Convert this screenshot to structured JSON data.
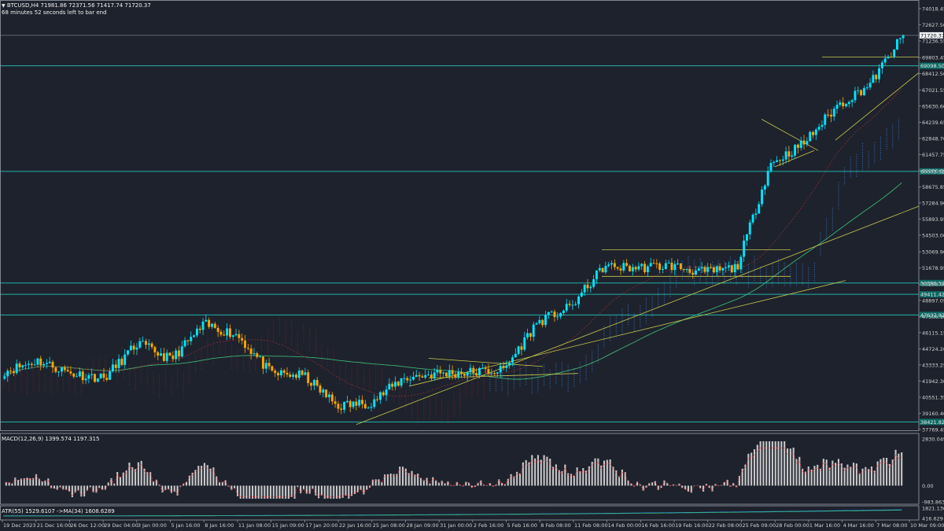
{
  "header": {
    "symbol_line": "BTCUSD,H4  71981.86 72371.56 71417.74 71720.37",
    "timer_text": "68 minutes 52 seconds left to bar end"
  },
  "indicators": {
    "macd_label": "MACD(12,26,9) 1399.574 1197.315",
    "atr_label": "ATR(55) 1529.6107  ->MA(34) 1608.6289"
  },
  "price_axis": {
    "ticks": [
      "74018.45",
      "72627.50",
      "71236.55",
      "69803.45",
      "68412.50",
      "67021.55",
      "65630.60",
      "64239.65",
      "62848.70",
      "61457.75",
      "60066.80",
      "58675.85",
      "57284.90",
      "55893.95",
      "54503.00",
      "53069.90",
      "51678.95",
      "50288.00",
      "48897.05",
      "47506.10",
      "46115.15",
      "44724.20",
      "43333.25",
      "41942.30",
      "40551.35",
      "39160.40",
      "37769.45"
    ],
    "current_price": "71720.37",
    "levels": [
      "69098.50",
      "60003.52",
      "50386.52",
      "49411.42",
      "47637.82",
      "38421.82"
    ]
  },
  "macd_axis": {
    "ticks": [
      "2830.049",
      "0.00",
      "-983.863"
    ]
  },
  "atr_axis": {
    "ticks": [
      "1821.1306",
      "416.629"
    ]
  },
  "time_axis": {
    "labels": [
      "19 Dec 2023",
      "21 Dec 16:00",
      "26 Dec 12:00",
      "29 Dec 04:00",
      "3 Jan 00:00",
      "5 Jan 16:00",
      "8 Jan 16:00",
      "11 Jan 08:00",
      "15 Jan 09:00",
      "17 Jan 20:00",
      "22 Jan 16:00",
      "25 Jan 08:00",
      "28 Jan 09:00",
      "31 Jan 00:00",
      "2 Feb 16:00",
      "5 Feb 16:00",
      "8 Feb 08:00",
      "11 Feb 08:00",
      "14 Feb 00:00",
      "16 Feb 16:00",
      "19 Feb 16:00",
      "22 Feb 08:00",
      "25 Feb 09:00",
      "28 Feb 00:00",
      "1 Mar 16:00",
      "4 Mar 16:00",
      "7 Mar 08:00",
      "10 Mar 09:00"
    ]
  },
  "colors": {
    "background": "#1e222d",
    "bull": "#00e5ff",
    "bear": "#ffa500",
    "level_line": "#20b2aa",
    "trend_line": "#c9c94a",
    "cloud_bull": "#3a7fd0",
    "cloud_bear": "#8b1a2a",
    "ma_line": "#3cb371",
    "histogram": "#c8c8c8",
    "signal": "#ff3030"
  },
  "chart_data": {
    "type": "candlestick",
    "symbol": "BTCUSD",
    "timeframe": "H4",
    "ohlc_last": {
      "open": 71981.86,
      "high": 72371.56,
      "low": 71417.74,
      "close": 71720.37
    },
    "ylim": [
      37769.45,
      74018.45
    ],
    "horizontal_levels": [
      69098.5,
      60003.52,
      50386.52,
      49411.42,
      47637.82,
      38421.82
    ],
    "close_path": [
      {
        "x": "19 Dec 2023",
        "y": 42800
      },
      {
        "x": "21 Dec 16:00",
        "y": 43700
      },
      {
        "x": "26 Dec 12:00",
        "y": 42600
      },
      {
        "x": "29 Dec 04:00",
        "y": 42200
      },
      {
        "x": "3 Jan 00:00",
        "y": 45200
      },
      {
        "x": "5 Jan 16:00",
        "y": 43800
      },
      {
        "x": "8 Jan 16:00",
        "y": 46800
      },
      {
        "x": "11 Jan 08:00",
        "y": 45900
      },
      {
        "x": "15 Jan 09:00",
        "y": 42600
      },
      {
        "x": "17 Jan 20:00",
        "y": 42400
      },
      {
        "x": "22 Jan 16:00",
        "y": 39800
      },
      {
        "x": "25 Jan 08:00",
        "y": 40100
      },
      {
        "x": "28 Jan 09:00",
        "y": 42200
      },
      {
        "x": "31 Jan 00:00",
        "y": 42600
      },
      {
        "x": "2 Feb 16:00",
        "y": 42700
      },
      {
        "x": "5 Feb 16:00",
        "y": 42900
      },
      {
        "x": "8 Feb 08:00",
        "y": 47000
      },
      {
        "x": "11 Feb 08:00",
        "y": 48300
      },
      {
        "x": "14 Feb 00:00",
        "y": 51800
      },
      {
        "x": "16 Feb 16:00",
        "y": 51700
      },
      {
        "x": "19 Feb 16:00",
        "y": 51900
      },
      {
        "x": "22 Feb 08:00",
        "y": 51300
      },
      {
        "x": "25 Feb 09:00",
        "y": 51700
      },
      {
        "x": "28 Feb 00:00",
        "y": 60600
      },
      {
        "x": "1 Mar 16:00",
        "y": 62400
      },
      {
        "x": "4 Mar 16:00",
        "y": 65600
      },
      {
        "x": "7 Mar 08:00",
        "y": 67500
      },
      {
        "x": "10 Mar 09:00",
        "y": 71720
      }
    ],
    "macd": {
      "ylim": [
        -983.863,
        2830.049
      ],
      "last_hist": 1399.574,
      "last_signal": 1197.315
    },
    "atr": {
      "ylim": [
        416.629,
        1821.1306
      ],
      "last": 1529.6107,
      "ma34": 1608.6289
    }
  }
}
